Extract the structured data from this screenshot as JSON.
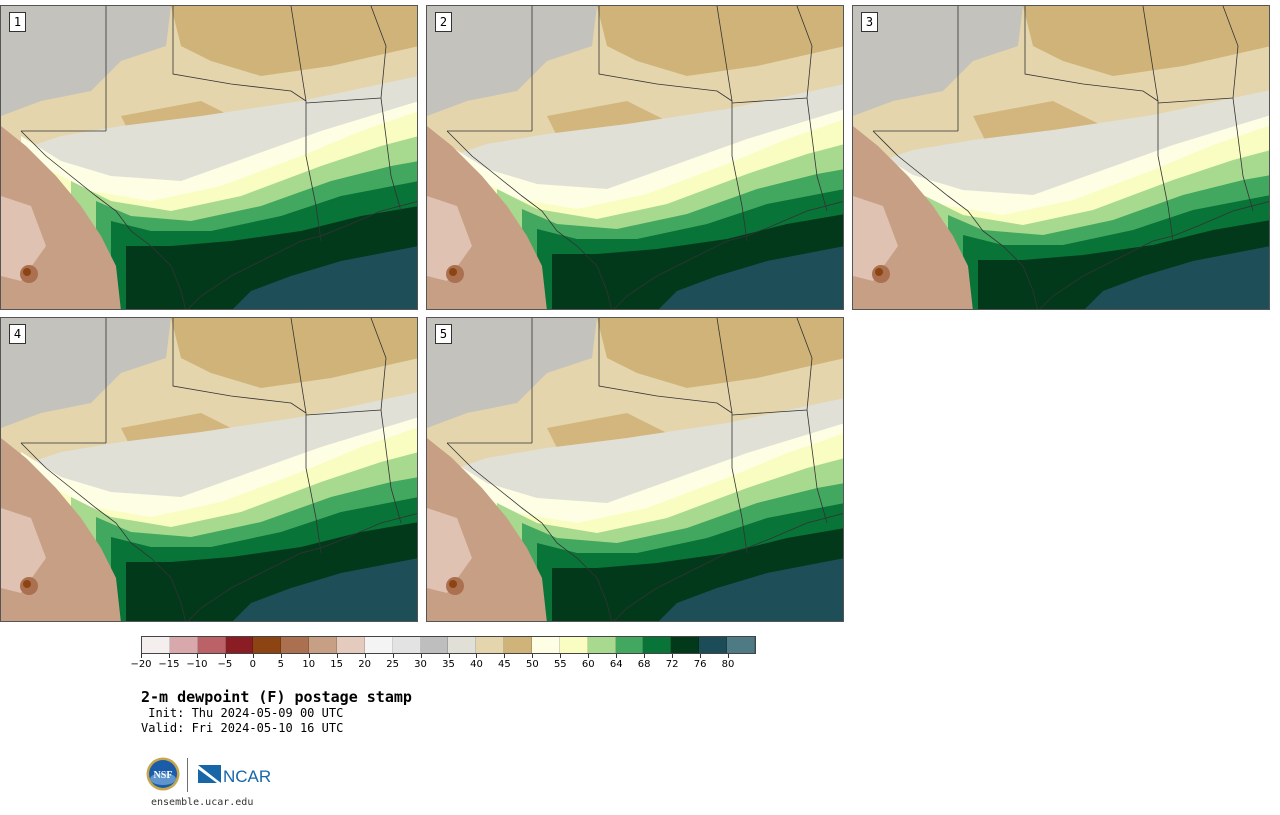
{
  "panels": [
    {
      "label": "1"
    },
    {
      "label": "2"
    },
    {
      "label": "3"
    },
    {
      "label": "4"
    },
    {
      "label": "5"
    }
  ],
  "colorbar": {
    "ticks": [
      "−20",
      "−15",
      "−10",
      "−5",
      "0",
      "5",
      "10",
      "15",
      "20",
      "25",
      "30",
      "35",
      "40",
      "45",
      "50",
      "55",
      "60",
      "64",
      "68",
      "72",
      "76",
      "80"
    ],
    "colors": [
      "#f4eeee",
      "#d9a8ad",
      "#bb6168",
      "#8a1c24",
      "#8c4512",
      "#aa7050",
      "#c79f85",
      "#e5cbbd",
      "#f4f4f4",
      "#e3e3e3",
      "#bebebe",
      "#e1e0d7",
      "#e4d5ad",
      "#cfb378",
      "#fefee4",
      "#f9fdc1",
      "#a7da8f",
      "#43a85f",
      "#087438",
      "#02391b",
      "#1b4c57",
      "#4d7a83"
    ]
  },
  "title": "2-m dewpoint (F) postage stamp",
  "init": " Init: Thu 2024-05-09 00 UTC",
  "valid": "Valid: Fri 2024-05-10 16 UTC",
  "logos": {
    "nsf": "NSF",
    "ncar": "NCAR"
  },
  "site": "ensemble.ucar.edu",
  "colors": {
    "desert": "#cfb378",
    "tan": "#e4d5ad",
    "gray": "#bebebe",
    "light_gray": "#e1e0d7",
    "cream": "#fefee4",
    "pale_yellow": "#f9fdc1",
    "light_green": "#a7da8f",
    "green": "#43a85f",
    "dark_green": "#087438",
    "deep_green": "#02391b",
    "gulf": "#1e4f58",
    "mexico_brown": "#c79f85"
  }
}
